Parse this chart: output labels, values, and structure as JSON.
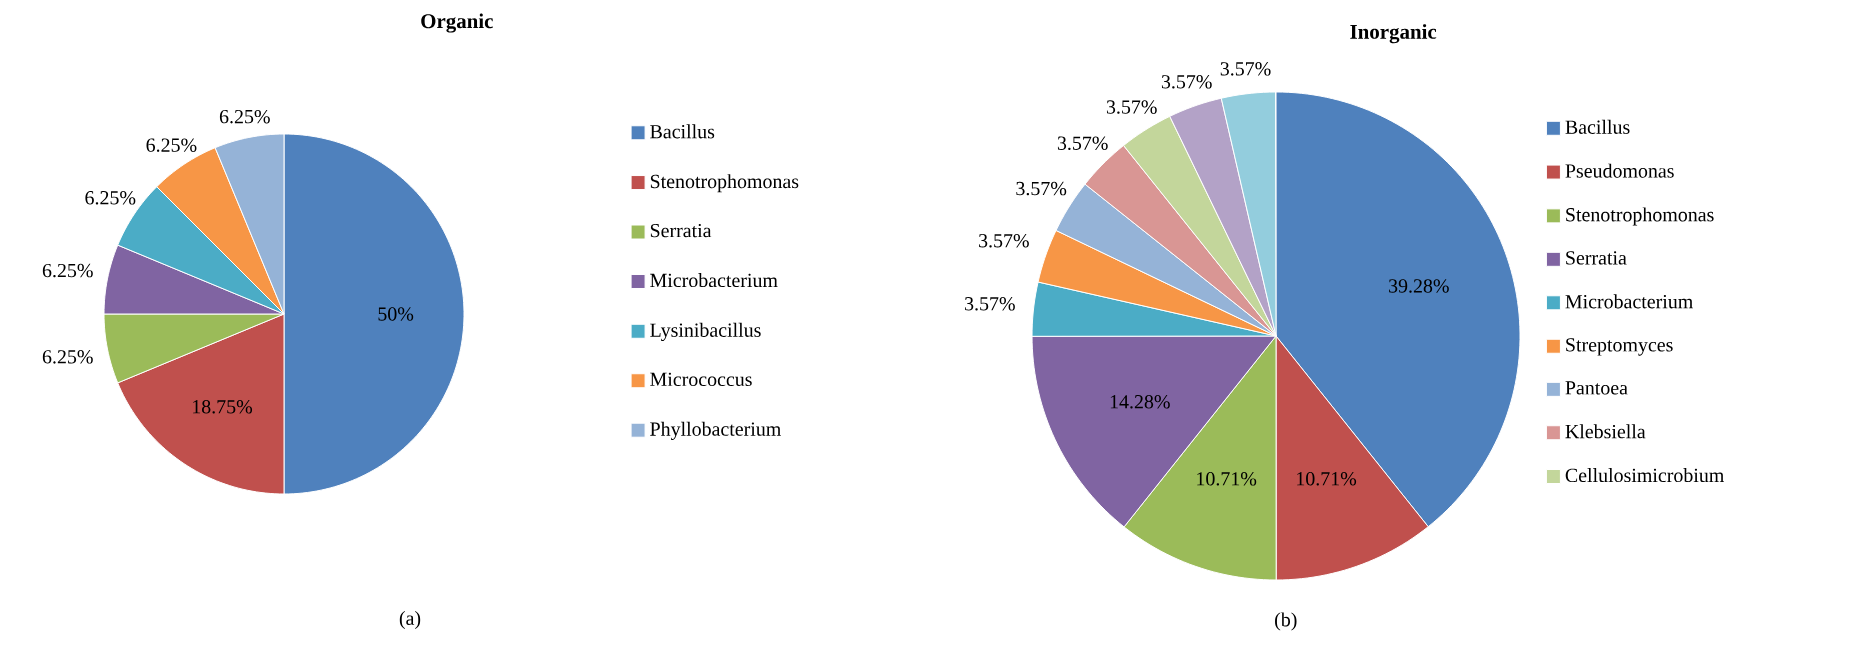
{
  "chart_data": [
    {
      "type": "pie",
      "title": "Organic",
      "categories": [
        "Bacillus",
        "Stenotrophomonas",
        "Serratia",
        "Microbacterium",
        "Lysinibacillus",
        "Micrococcus",
        "Phyllobacterium"
      ],
      "values": [
        50,
        18.75,
        6.25,
        6.25,
        6.25,
        6.25,
        6.25
      ],
      "value_labels": [
        "50%",
        "18.75%",
        "6.25%",
        "6.25%",
        "6.25%",
        "6.25%",
        "6.25%"
      ],
      "colors": [
        "#4f81bd",
        "#c0504d",
        "#9bbb59",
        "#8064a2",
        "#4bacc6",
        "#f79646",
        "#95b3d7"
      ],
      "legend": "right",
      "annotations": [
        "(a)"
      ]
    },
    {
      "type": "pie",
      "title": "Inorganic",
      "categories": [
        "Bacillus",
        "Pseudomonas",
        "Stenotrophomonas",
        "Serratia",
        "Microbacterium",
        "Streptomyces",
        "Pantoea",
        "Klebsiella",
        "Cellulosimicrobium",
        null,
        null
      ],
      "values": [
        39.28,
        10.71,
        10.71,
        14.28,
        3.57,
        3.57,
        3.57,
        3.57,
        3.57,
        3.57,
        3.57
      ],
      "value_labels": [
        "39.28%",
        "10.71%",
        "10.71%",
        "14.28%",
        "3.57%",
        "3.57%",
        "3.57%",
        "3.57%",
        "3.57%",
        "3.57%",
        "3.57%"
      ],
      "colors": [
        "#4f81bd",
        "#c0504d",
        "#9bbb59",
        "#8064a2",
        "#4bacc6",
        "#f79646",
        "#95b3d7",
        "#d99694",
        "#c3d69b",
        "#b3a2c7",
        "#93cddd"
      ],
      "legend": "right",
      "annotations": [
        "(b)"
      ]
    }
  ]
}
